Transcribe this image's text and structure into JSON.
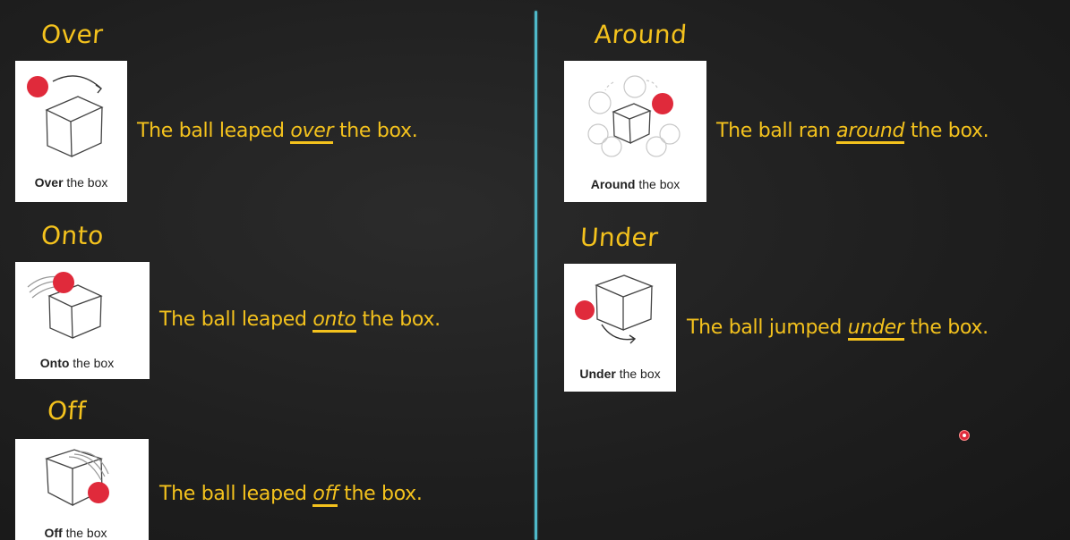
{
  "left": [
    {
      "heading": "Over",
      "caption_bold": "Over",
      "caption_rest": " the box",
      "sentence_pre": "The ball leaped ",
      "keyword": "over",
      "sentence_post": " the box."
    },
    {
      "heading": "Onto",
      "caption_bold": "Onto",
      "caption_rest": " the box",
      "sentence_pre": "The ball leaped ",
      "keyword": "onto",
      "sentence_post": " the box."
    },
    {
      "heading": "Off",
      "caption_bold": "Off",
      "caption_rest": " the box",
      "sentence_pre": "The ball leaped ",
      "keyword": "off",
      "sentence_post": " the box."
    }
  ],
  "right": [
    {
      "heading": "Around",
      "caption_bold": "Around",
      "caption_rest": " the box",
      "sentence_pre": "The ball ran ",
      "keyword": "around",
      "sentence_post": " the box."
    },
    {
      "heading": "Under",
      "caption_bold": "Under",
      "caption_rest": " the box",
      "sentence_pre": "The ball jumped ",
      "keyword": "under",
      "sentence_post": " the box."
    }
  ],
  "colors": {
    "text_accent": "#f4c21d",
    "divider": "#4fb9c9",
    "ball": "#e02a3b",
    "background": "#1e1e1e"
  },
  "icons": {
    "cursor": "pointer-indicator-icon"
  }
}
